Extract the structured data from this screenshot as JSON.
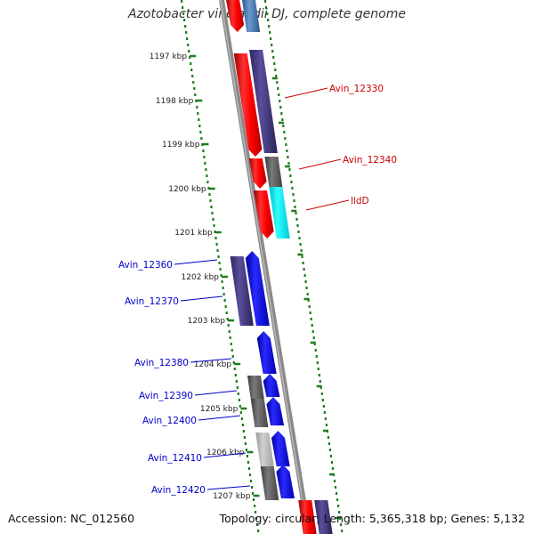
{
  "title": "Azotobacter vinelandii DJ, complete genome",
  "footer": {
    "accession": "Accession: NC_012560",
    "summary": "Topology: circular; Length: 5,365,318 bp; Genes: 5,132"
  },
  "colors": {
    "backbone": "#8a8a8a",
    "scale_dots": "#1e7d1e",
    "forward_label": "#cc0000",
    "reverse_label": "#0000cc"
  },
  "scale_ticks": [
    "1197 kbp",
    "1198 kbp",
    "1199 kbp",
    "1200 kbp",
    "1201 kbp",
    "1202 kbp",
    "1203 kbp",
    "1204 kbp",
    "1205 kbp",
    "1206 kbp",
    "1207 kbp"
  ],
  "gene_labels_forward": [
    "Avin_12330",
    "Avin_12340",
    "lldD"
  ],
  "gene_labels_reverse": [
    "Avin_12360",
    "Avin_12370",
    "Avin_12380",
    "Avin_12390",
    "Avin_12400",
    "Avin_12410",
    "Avin_12420"
  ]
}
